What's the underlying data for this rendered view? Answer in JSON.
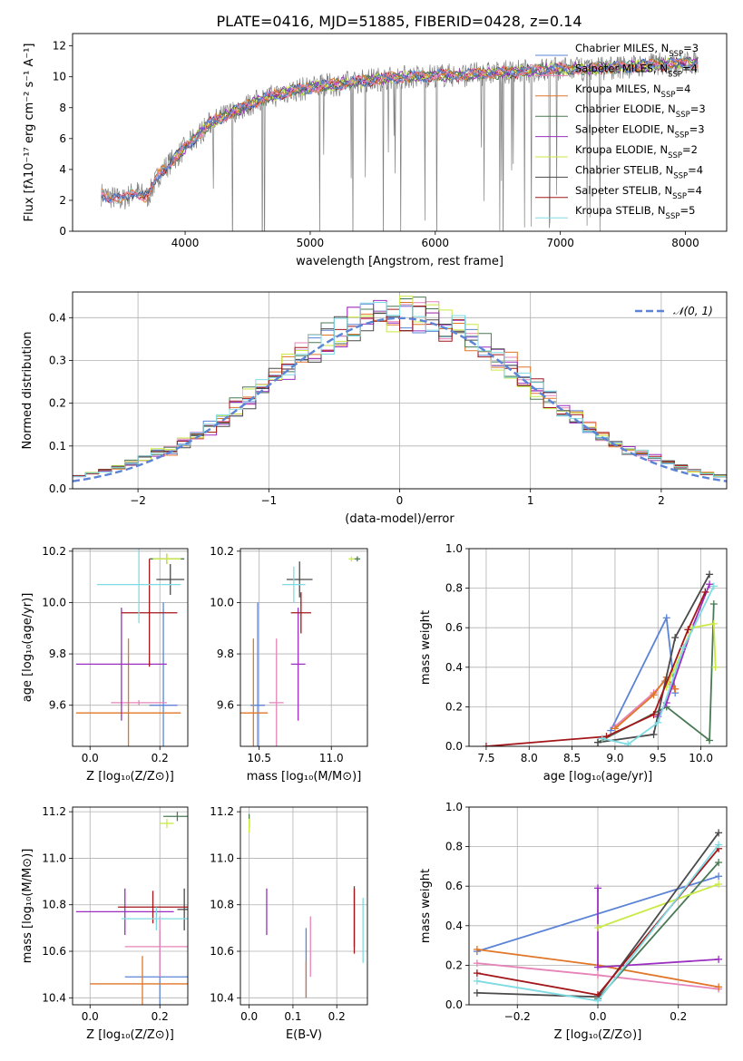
{
  "title": "PLATE=0416, MJD=51885, FIBERID=0428, z=0.14",
  "colors": {
    "chabrier_miles": "#5b84d6",
    "salpeter_miles": "#e683b8",
    "kroupa_miles": "#e07628",
    "chabrier_elodie": "#4a7a55",
    "salpeter_elodie": "#9b2fbf",
    "kroupa_elodie": "#c9ea45",
    "chabrier_stelib": "#4a4a4a",
    "salpeter_stelib": "#a3161a",
    "kroupa_stelib": "#7fdbe3",
    "data": "#808080",
    "gaussian": "#5b84d6"
  },
  "chart_data": [
    {
      "id": "spectrum",
      "type": "line",
      "xlabel": "wavelength [Angstrom, rest frame]",
      "ylabel": "Flux [fλ10⁻¹⁷ erg cm⁻² s⁻¹ A⁻¹]",
      "xlim": [
        3100,
        8330
      ],
      "ylim": [
        0,
        12.8
      ],
      "xticks": [
        "4000",
        "5000",
        "6000",
        "7000",
        "8000"
      ],
      "yticks": [
        "0",
        "2",
        "4",
        "6",
        "8",
        "10",
        "12"
      ],
      "continuum": {
        "x": [
          3330,
          3500,
          3600,
          3700,
          3800,
          3900,
          4000,
          4100,
          4200,
          4400,
          4600,
          4800,
          5000,
          5200,
          5400,
          5600,
          5800,
          6000,
          6200,
          6400,
          6600,
          6800,
          7000,
          7200,
          7400,
          7600,
          7800,
          8000,
          8100
        ],
        "y": [
          2.4,
          2.0,
          2.6,
          2.2,
          3.8,
          4.6,
          5.4,
          6.2,
          7.0,
          7.8,
          8.5,
          9.0,
          9.3,
          9.5,
          9.7,
          9.9,
          10.0,
          10.1,
          10.1,
          10.2,
          10.3,
          10.4,
          10.5,
          10.5,
          10.6,
          10.7,
          10.8,
          10.9,
          10.9
        ]
      },
      "legend": [
        {
          "label": "Chabrier MILES, N",
          "sub": "SSP",
          "tail": "=3",
          "color": "chabrier_miles"
        },
        {
          "label": "Salpeter MILES, N",
          "sub": "SSP",
          "tail": "=4",
          "color": "salpeter_miles"
        },
        {
          "label": "Kroupa MILES, N",
          "sub": "SSP",
          "tail": "=4",
          "color": "kroupa_miles"
        },
        {
          "label": "Chabrier ELODIE, N",
          "sub": "SSP",
          "tail": "=3",
          "color": "chabrier_elodie"
        },
        {
          "label": "Salpeter ELODIE, N",
          "sub": "SSP",
          "tail": "=3",
          "color": "salpeter_elodie"
        },
        {
          "label": "Kroupa ELODIE, N",
          "sub": "SSP",
          "tail": "=2",
          "color": "kroupa_elodie"
        },
        {
          "label": "Chabrier STELIB, N",
          "sub": "SSP",
          "tail": "=4",
          "color": "chabrier_stelib"
        },
        {
          "label": "Salpeter STELIB, N",
          "sub": "SSP",
          "tail": "=4",
          "color": "salpeter_stelib"
        },
        {
          "label": "Kroupa STELIB, N",
          "sub": "SSP",
          "tail": "=5",
          "color": "kroupa_stelib"
        }
      ]
    },
    {
      "id": "residuals",
      "type": "bar",
      "xlabel": "(data-model)/error",
      "ylabel": "Normed distribution",
      "xlim": [
        -2.5,
        2.5
      ],
      "ylim": [
        0,
        0.46
      ],
      "xticks": [
        "−2",
        "−1",
        "0",
        "1",
        "2"
      ],
      "yticks": [
        "0.0",
        "0.1",
        "0.2",
        "0.3",
        "0.4"
      ],
      "gaussian_legend": "𝒩(0, 1)",
      "series": [
        {
          "color": "chabrier_miles",
          "shift": 0.0
        },
        {
          "color": "salpeter_miles",
          "shift": 0.01
        },
        {
          "color": "kroupa_miles",
          "shift": -0.01
        },
        {
          "color": "chabrier_elodie",
          "shift": 0.02
        },
        {
          "color": "salpeter_elodie",
          "shift": -0.02
        },
        {
          "color": "kroupa_elodie",
          "shift": 0.015
        },
        {
          "color": "chabrier_stelib",
          "shift": -0.015
        },
        {
          "color": "salpeter_stelib",
          "shift": 0.005
        },
        {
          "color": "kroupa_stelib",
          "shift": -0.005
        }
      ]
    },
    {
      "id": "age_vs_Z",
      "type": "scatter",
      "xlabel": "Z [log₁₀(Z/Z⊙)]",
      "ylabel": "age  [log₁₀(age/yr)]",
      "xlim": [
        -0.05,
        0.28
      ],
      "ylim": [
        9.44,
        10.21
      ],
      "xticks": [
        "0.0",
        "0.2"
      ],
      "yticks": [
        "9.6",
        "9.8",
        "10.0",
        "10.2"
      ],
      "points": [
        {
          "color": "chabrier_miles",
          "x": 0.21,
          "xerr": 0.04,
          "y": 9.6,
          "yerr": 0.4
        },
        {
          "color": "salpeter_miles",
          "x": 0.14,
          "xerr": 0.08,
          "y": 9.61,
          "yerr": 0.01
        },
        {
          "color": "kroupa_miles",
          "x": 0.11,
          "xerr": 0.15,
          "y": 9.57,
          "yerr": 0.29
        },
        {
          "color": "chabrier_elodie",
          "x": 0.22,
          "xerr": 0.05,
          "y": 10.17,
          "yerr": 0.02
        },
        {
          "color": "salpeter_elodie",
          "x": 0.09,
          "xerr": 0.13,
          "y": 9.76,
          "yerr": 0.22
        },
        {
          "color": "kroupa_elodie",
          "x": 0.22,
          "xerr": 0.04,
          "y": 10.17,
          "yerr": 0.02
        },
        {
          "color": "chabrier_stelib",
          "x": 0.23,
          "xerr": 0.04,
          "y": 10.09,
          "yerr": 0.06
        },
        {
          "color": "salpeter_stelib",
          "x": 0.17,
          "xerr": 0.08,
          "y": 9.96,
          "yerr": 0.21
        },
        {
          "color": "kroupa_stelib",
          "x": 0.14,
          "xerr": 0.12,
          "y": 10.07,
          "yerr": 0.15
        }
      ]
    },
    {
      "id": "age_vs_mass",
      "type": "scatter",
      "xlabel": "mass [log₁₀(M/M⊙)]",
      "ylabel": "",
      "xlim": [
        10.37,
        11.25
      ],
      "ylim": [
        9.44,
        10.21
      ],
      "xticks": [
        "10.5",
        "11.0"
      ],
      "yticks": [
        "9.6",
        "9.8",
        "10.0",
        "10.2"
      ],
      "points": [
        {
          "color": "chabrier_miles",
          "x": 10.49,
          "xerr": 0.05,
          "y": 9.6,
          "yerr": 0.4
        },
        {
          "color": "salpeter_miles",
          "x": 10.62,
          "xerr": 0.05,
          "y": 9.61,
          "yerr": 0.25
        },
        {
          "color": "kroupa_miles",
          "x": 10.46,
          "xerr": 0.1,
          "y": 9.57,
          "yerr": 0.29
        },
        {
          "color": "chabrier_elodie",
          "x": 11.18,
          "xerr": 0.02,
          "y": 10.17,
          "yerr": 0.01
        },
        {
          "color": "salpeter_elodie",
          "x": 10.77,
          "xerr": 0.05,
          "y": 9.76,
          "yerr": 0.22
        },
        {
          "color": "kroupa_elodie",
          "x": 11.14,
          "xerr": 0.02,
          "y": 10.17,
          "yerr": 0.01
        },
        {
          "color": "chabrier_stelib",
          "x": 10.78,
          "xerr": 0.09,
          "y": 10.09,
          "yerr": 0.07
        },
        {
          "color": "salpeter_stelib",
          "x": 10.79,
          "xerr": 0.07,
          "y": 9.96,
          "yerr": 0.08
        },
        {
          "color": "kroupa_stelib",
          "x": 10.74,
          "xerr": 0.08,
          "y": 10.07,
          "yerr": 0.07
        }
      ]
    },
    {
      "id": "weight_vs_age",
      "type": "line",
      "xlabel": "age  [log₁₀(age/yr)]",
      "ylabel": "mass weight",
      "xlim": [
        7.3,
        10.3
      ],
      "ylim": [
        0,
        1.0
      ],
      "xticks": [
        "7.5",
        "8.0",
        "8.5",
        "9.0",
        "9.5",
        "10.0"
      ],
      "yticks": [
        "0.0",
        "0.2",
        "0.4",
        "0.6",
        "0.8",
        "1.0"
      ],
      "series": [
        {
          "color": "chabrier_miles",
          "x": [
            8.95,
            9.6,
            9.7
          ],
          "y": [
            0.08,
            0.65,
            0.27
          ]
        },
        {
          "color": "salpeter_miles",
          "x": [
            9.0,
            9.45,
            9.58,
            9.7
          ],
          "y": [
            0.1,
            0.27,
            0.33,
            0.29
          ]
        },
        {
          "color": "kroupa_miles",
          "x": [
            9.0,
            9.45,
            9.6,
            9.7
          ],
          "y": [
            0.09,
            0.26,
            0.35,
            0.29
          ]
        },
        {
          "color": "chabrier_elodie",
          "x": [
            8.8,
            9.6,
            10.1,
            10.15
          ],
          "y": [
            0.02,
            0.2,
            0.03,
            0.72
          ]
        },
        {
          "color": "salpeter_elodie",
          "x": [
            9.5,
            9.6,
            9.9,
            10.1
          ],
          "y": [
            0.15,
            0.22,
            0.6,
            0.82
          ]
        },
        {
          "color": "kroupa_elodie",
          "x": [
            9.6,
            9.9,
            10.15,
            10.17
          ],
          "y": [
            0.3,
            0.6,
            0.62,
            0.4
          ]
        },
        {
          "color": "chabrier_stelib",
          "x": [
            8.8,
            9.45,
            9.7,
            10.1
          ],
          "y": [
            0.02,
            0.06,
            0.55,
            0.87
          ]
        },
        {
          "color": "salpeter_stelib",
          "x": [
            7.5,
            8.9,
            9.45,
            9.85,
            10.05
          ],
          "y": [
            0.0,
            0.05,
            0.16,
            0.59,
            0.78
          ]
        },
        {
          "color": "kroupa_stelib",
          "x": [
            8.85,
            9.15,
            9.5,
            9.8,
            10.15
          ],
          "y": [
            0.04,
            0.01,
            0.12,
            0.5,
            0.81
          ]
        }
      ]
    },
    {
      "id": "mass_vs_Z",
      "type": "scatter",
      "xlabel": "Z [log₁₀(Z/Z⊙)]",
      "ylabel": "mass [log₁₀(M/M⊙)]",
      "xlim": [
        -0.05,
        0.28
      ],
      "ylim": [
        10.37,
        11.22
      ],
      "xticks": [
        "0.0",
        "0.2"
      ],
      "yticks": [
        "10.4",
        "10.6",
        "10.8",
        "11.0",
        "11.2"
      ],
      "points": [
        {
          "color": "chabrier_miles",
          "x": 0.2,
          "xerr": 0.1,
          "y": 10.49,
          "yerr": 0.2
        },
        {
          "color": "salpeter_miles",
          "x": 0.2,
          "xerr": 0.1,
          "y": 10.62,
          "yerr": 0.13
        },
        {
          "color": "kroupa_miles",
          "x": 0.15,
          "xerr": 0.15,
          "y": 10.46,
          "yerr": 0.12
        },
        {
          "color": "chabrier_elodie",
          "x": 0.25,
          "xerr": 0.04,
          "y": 11.18,
          "yerr": 0.02
        },
        {
          "color": "salpeter_elodie",
          "x": 0.1,
          "xerr": 0.14,
          "y": 10.77,
          "yerr": 0.1
        },
        {
          "color": "kroupa_elodie",
          "x": 0.22,
          "xerr": 0.02,
          "y": 11.15,
          "yerr": 0.02
        },
        {
          "color": "chabrier_stelib",
          "x": 0.27,
          "xerr": 0.02,
          "y": 10.78,
          "yerr": 0.09
        },
        {
          "color": "salpeter_stelib",
          "x": 0.18,
          "xerr": 0.1,
          "y": 10.79,
          "yerr": 0.07
        },
        {
          "color": "kroupa_stelib",
          "x": 0.19,
          "xerr": 0.1,
          "y": 10.74,
          "yerr": 0.05
        }
      ]
    },
    {
      "id": "mass_vs_EBV",
      "type": "scatter",
      "xlabel": "E(B-V)",
      "ylabel": "",
      "xlim": [
        -0.02,
        0.27
      ],
      "ylim": [
        10.37,
        11.22
      ],
      "xticks": [
        "0.0",
        "0.1",
        "0.2"
      ],
      "yticks": [
        "10.4",
        "10.6",
        "10.8",
        "11.0",
        "11.2"
      ],
      "points": [
        {
          "color": "chabrier_miles",
          "x": 0.13,
          "xerr": 0,
          "y": 10.55,
          "yerr": 0.15
        },
        {
          "color": "salpeter_miles",
          "x": 0.14,
          "xerr": 0,
          "y": 10.62,
          "yerr": 0.13
        },
        {
          "color": "kroupa_miles",
          "x": 0.13,
          "xerr": 0,
          "y": 10.48,
          "yerr": 0.08
        },
        {
          "color": "chabrier_elodie",
          "x": 0.0,
          "xerr": 0,
          "y": 11.16,
          "yerr": 0.03
        },
        {
          "color": "salpeter_elodie",
          "x": 0.04,
          "xerr": 0,
          "y": 10.77,
          "yerr": 0.1
        },
        {
          "color": "kroupa_elodie",
          "x": 0.0,
          "xerr": 0,
          "y": 11.14,
          "yerr": 0.03
        },
        {
          "color": "chabrier_stelib",
          "x": 0.24,
          "xerr": 0,
          "y": 10.75,
          "yerr": 0.13
        },
        {
          "color": "salpeter_stelib",
          "x": 0.24,
          "xerr": 0,
          "y": 10.73,
          "yerr": 0.14
        },
        {
          "color": "kroupa_stelib",
          "x": 0.26,
          "xerr": 0,
          "y": 10.69,
          "yerr": 0.14
        }
      ]
    },
    {
      "id": "weight_vs_Z",
      "type": "line",
      "xlabel": "Z [log₁₀(Z/Z⊙)]",
      "ylabel": "mass weight",
      "xlim": [
        -0.32,
        0.32
      ],
      "ylim": [
        0,
        1.0
      ],
      "xticks": [
        "−0.2",
        "0.0",
        "0.2"
      ],
      "yticks": [
        "0.0",
        "0.2",
        "0.4",
        "0.6",
        "0.8",
        "1.0"
      ],
      "series": [
        {
          "color": "chabrier_miles",
          "x": [
            -0.3,
            0.3
          ],
          "y": [
            0.27,
            0.65
          ]
        },
        {
          "color": "salpeter_miles",
          "x": [
            -0.3,
            0.0,
            0.3
          ],
          "y": [
            0.21,
            0.15,
            0.08
          ]
        },
        {
          "color": "kroupa_miles",
          "x": [
            -0.3,
            0.0,
            0.3
          ],
          "y": [
            0.28,
            0.2,
            0.09
          ]
        },
        {
          "color": "chabrier_elodie",
          "x": [
            0.0,
            0.3
          ],
          "y": [
            0.03,
            0.72
          ]
        },
        {
          "color": "salpeter_elodie",
          "x": [
            0.0,
            0.0,
            0.3
          ],
          "y": [
            0.59,
            0.19,
            0.23
          ]
        },
        {
          "color": "kroupa_elodie",
          "x": [
            0.0,
            0.3
          ],
          "y": [
            0.39,
            0.61
          ]
        },
        {
          "color": "chabrier_stelib",
          "x": [
            -0.3,
            0.0,
            0.3
          ],
          "y": [
            0.06,
            0.04,
            0.87
          ]
        },
        {
          "color": "salpeter_stelib",
          "x": [
            -0.3,
            0.0,
            0.3
          ],
          "y": [
            0.16,
            0.05,
            0.79
          ]
        },
        {
          "color": "kroupa_stelib",
          "x": [
            -0.3,
            0.0,
            0.3
          ],
          "y": [
            0.12,
            0.02,
            0.81
          ]
        }
      ]
    }
  ]
}
